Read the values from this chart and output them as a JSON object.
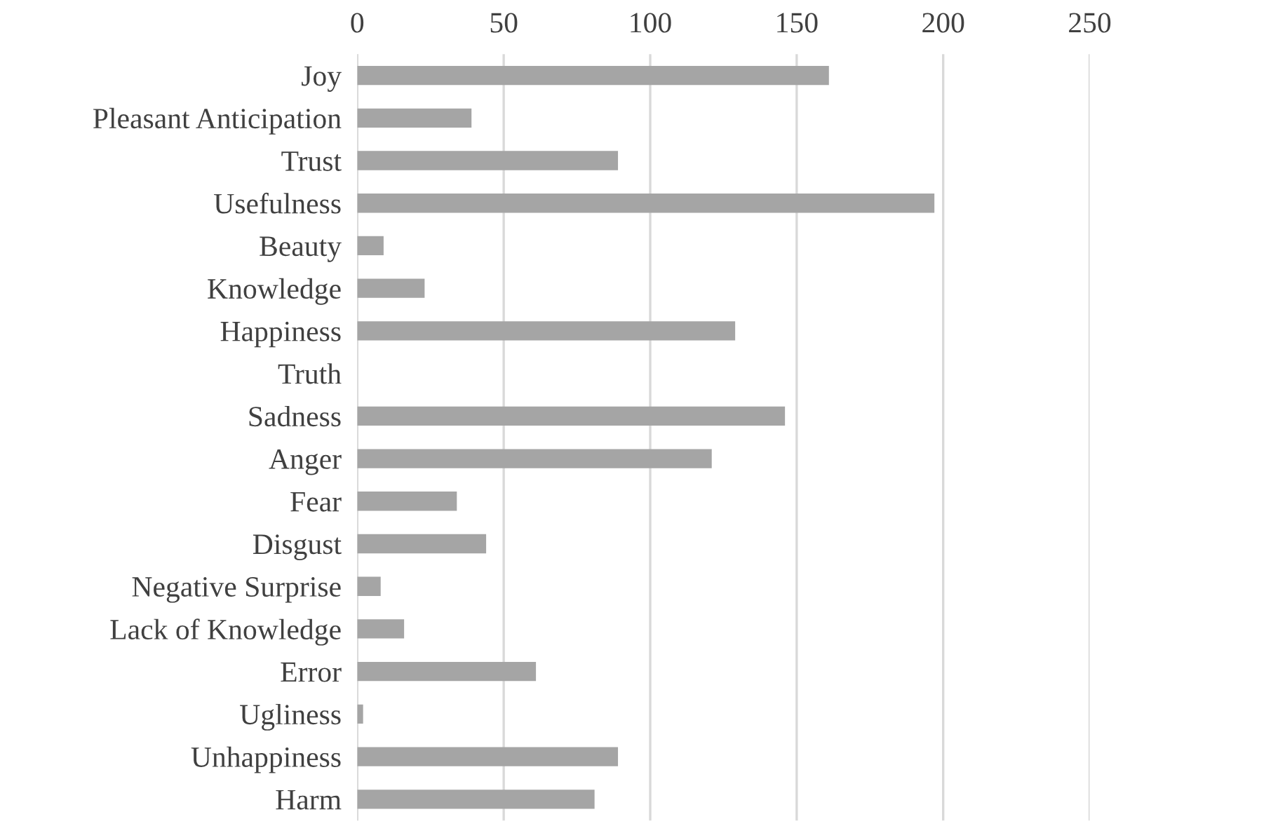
{
  "chart_data": {
    "type": "bar",
    "orientation": "horizontal",
    "categories": [
      "Joy",
      "Pleasant Anticipation",
      "Trust",
      "Usefulness",
      "Beauty",
      "Knowledge",
      "Happiness",
      "Truth",
      "Sadness",
      "Anger",
      "Fear",
      "Disgust",
      "Negative Surprise",
      "Lack of Knowledge",
      "Error",
      "Ugliness",
      "Unhappiness",
      "Harm"
    ],
    "values": [
      161,
      39,
      89,
      197,
      9,
      23,
      129,
      0,
      146,
      121,
      34,
      44,
      8,
      16,
      61,
      2,
      89,
      81
    ],
    "color": "#a5a5a5",
    "xlim": [
      0,
      250
    ],
    "xticks": [
      0,
      50,
      100,
      150,
      200,
      250
    ],
    "grid": "x"
  }
}
